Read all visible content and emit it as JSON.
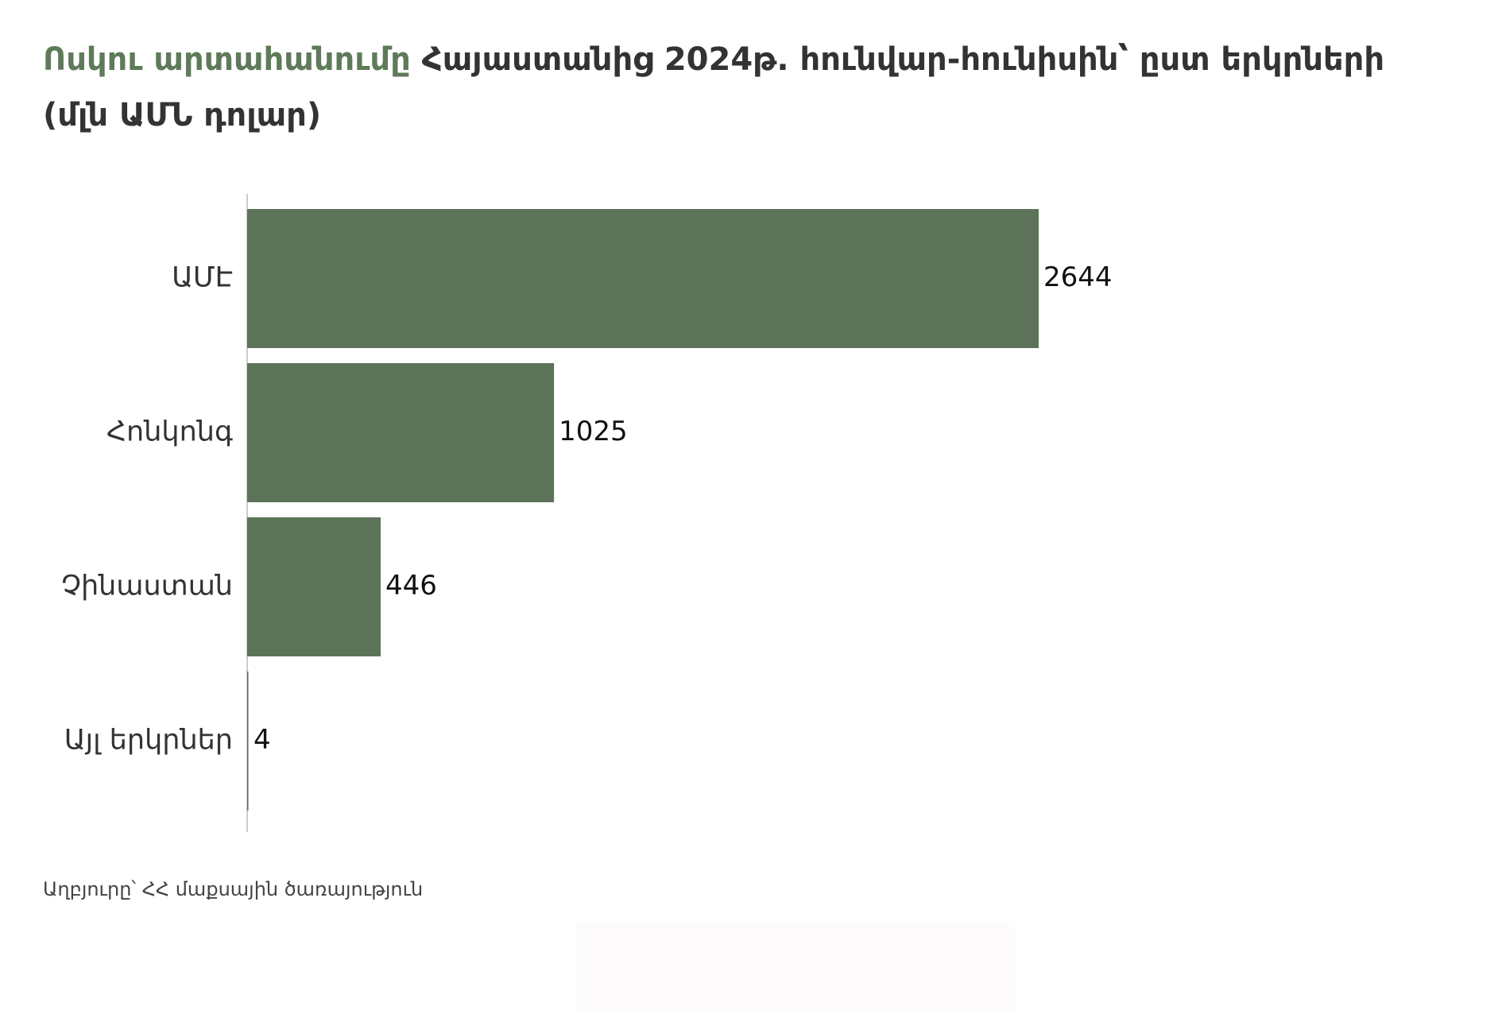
{
  "chart_data": {
    "type": "bar",
    "orientation": "horizontal",
    "title": {
      "highlight": "Ոսկու արտահանումը",
      "text": "Հայաստանից 2024թ. հունվար-հունիսին՝ ըստ երկրների (մլն ԱՄՆ դոլար)"
    },
    "categories": [
      "ԱՄԷ",
      "Հոնկոնգ",
      "Չինաստան",
      "Այլ երկրներ"
    ],
    "values": [
      2644,
      1025,
      446,
      4
    ],
    "color": "#5c7359",
    "source": "Աղբյուրը՝ ՀՀ մաքսային ծառայություն"
  }
}
